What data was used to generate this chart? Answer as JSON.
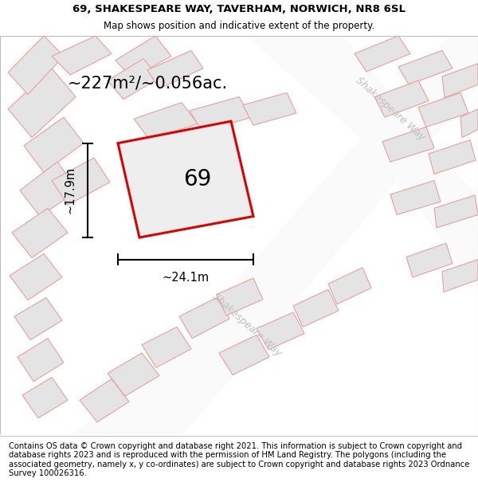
{
  "title_line1": "69, SHAKESPEARE WAY, TAVERHAM, NORWICH, NR8 6SL",
  "title_line2": "Map shows position and indicative extent of the property.",
  "footer_text": "Contains OS data © Crown copyright and database right 2021. This information is subject to Crown copyright and database rights 2023 and is reproduced with the permission of HM Land Registry. The polygons (including the associated geometry, namely x, y co-ordinates) are subject to Crown copyright and database rights 2023 Ordnance Survey 100026316.",
  "area_label": "~227m²/~0.056ac.",
  "number_label": "69",
  "width_label": "~24.1m",
  "height_label": "~17.9m",
  "map_bg": "#f2f2f2",
  "plot_outline_color": "#dd0000",
  "plot_fill_color": "#eeeeee",
  "neighbor_outline_color": "#e8a0a0",
  "neighbor_fill_color": "#e4e4e4",
  "road_fill": "#fafafa",
  "street_label": "Shakespeare Way",
  "title_fontsize": 9.5,
  "footer_fontsize": 7.2,
  "area_fontsize": 15,
  "number_fontsize": 20
}
